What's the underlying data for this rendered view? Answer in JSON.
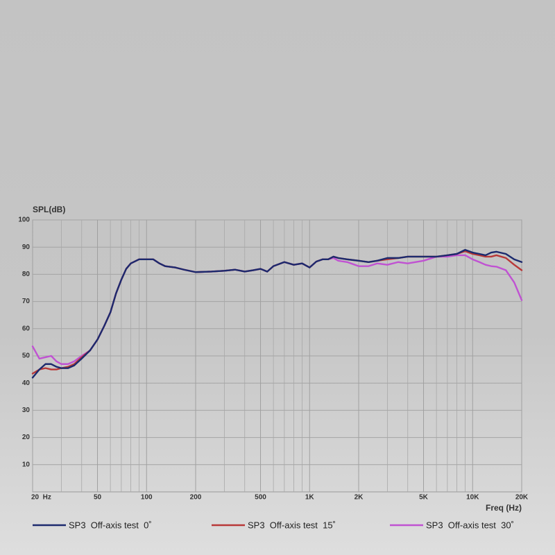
{
  "chart_data": {
    "type": "line",
    "ylabel": "SPL(dB)",
    "xlabel": "Freq (Hz)",
    "xscale": "log",
    "grid": true,
    "xlim": [
      20,
      20000
    ],
    "ylim": [
      0,
      100
    ],
    "yticks": [
      10,
      20,
      30,
      40,
      50,
      60,
      70,
      80,
      90,
      100
    ],
    "xticks": [
      {
        "value": 20,
        "label": "20  Hz"
      },
      50,
      100,
      200,
      500,
      {
        "value": 1000,
        "label": "1K"
      },
      {
        "value": 2000,
        "label": "2K"
      },
      {
        "value": 5000,
        "label": "5K"
      },
      {
        "value": 10000,
        "label": "10K"
      },
      {
        "value": 20000,
        "label": "20K"
      }
    ],
    "xminorticks": [
      30,
      40,
      60,
      70,
      80,
      90,
      300,
      400,
      600,
      700,
      800,
      900,
      3000,
      4000,
      6000,
      7000,
      8000,
      9000
    ],
    "x": [
      20,
      22,
      24,
      26,
      28,
      30,
      33,
      36,
      40,
      45,
      50,
      55,
      60,
      65,
      70,
      75,
      80,
      90,
      100,
      110,
      120,
      130,
      150,
      170,
      200,
      250,
      300,
      350,
      400,
      450,
      500,
      550,
      600,
      700,
      800,
      900,
      1000,
      1100,
      1200,
      1300,
      1400,
      1500,
      1700,
      2000,
      2300,
      2600,
      3000,
      3500,
      4000,
      5000,
      6000,
      7000,
      8000,
      9000,
      10000,
      11000,
      12000,
      13000,
      14000,
      16000,
      18000,
      20000
    ],
    "series": [
      {
        "name": "SP3  Off-axis test  0˚",
        "color": "#1c2a6e",
        "values": [
          42,
          45,
          47,
          47,
          46,
          45.5,
          45.5,
          46.5,
          49,
          52,
          56,
          61,
          66,
          73,
          78,
          82,
          84,
          85.5,
          85.5,
          85.5,
          84,
          83,
          82.5,
          81.7,
          80.8,
          81,
          81.3,
          81.7,
          81,
          81.5,
          82,
          81,
          83,
          84.5,
          83.5,
          84,
          82.5,
          84.7,
          85.5,
          85.5,
          86.5,
          86,
          85.5,
          85,
          84.5,
          85,
          86,
          86,
          86.5,
          86.5,
          86.5,
          87,
          87.5,
          89,
          88,
          87.5,
          87,
          88,
          88.3,
          87.5,
          85.5,
          84.5
        ]
      },
      {
        "name": "SP3  Off-axis test  15˚",
        "color": "#b83838",
        "values": [
          43.5,
          45,
          45.5,
          45,
          45,
          45.5,
          46,
          47,
          49.5,
          52,
          56,
          61,
          66,
          73,
          78,
          82,
          84,
          85.5,
          85.5,
          85.5,
          84,
          83,
          82.5,
          81.7,
          80.8,
          81,
          81.3,
          81.7,
          81,
          81.5,
          82,
          81,
          83,
          84.5,
          83.5,
          84,
          82.5,
          84.7,
          85.5,
          85.5,
          86.5,
          86,
          85.5,
          85,
          84.5,
          85,
          85.5,
          86,
          86.5,
          86.5,
          86.5,
          87,
          87.5,
          88.5,
          87.5,
          87,
          86.5,
          86.5,
          87,
          86,
          83.5,
          81.5
        ]
      },
      {
        "name": "SP3  Off-axis test  30˚",
        "color": "#c052d2",
        "values": [
          53.5,
          49,
          49.5,
          50,
          48,
          47,
          47,
          48,
          50,
          52,
          56,
          61,
          66,
          73,
          78,
          82,
          84,
          85.5,
          85.5,
          85.5,
          84,
          83,
          82.5,
          81.7,
          80.8,
          81,
          81.3,
          81.7,
          81,
          81.5,
          82,
          81,
          83,
          84.5,
          83.5,
          84,
          82.5,
          84.7,
          85.5,
          85.5,
          86,
          85,
          84.5,
          83,
          83,
          84,
          83.5,
          84.5,
          84,
          85,
          86.5,
          86.5,
          87,
          87,
          85.5,
          84.5,
          83.5,
          83,
          82.8,
          81.5,
          77,
          70.5
        ]
      }
    ]
  }
}
